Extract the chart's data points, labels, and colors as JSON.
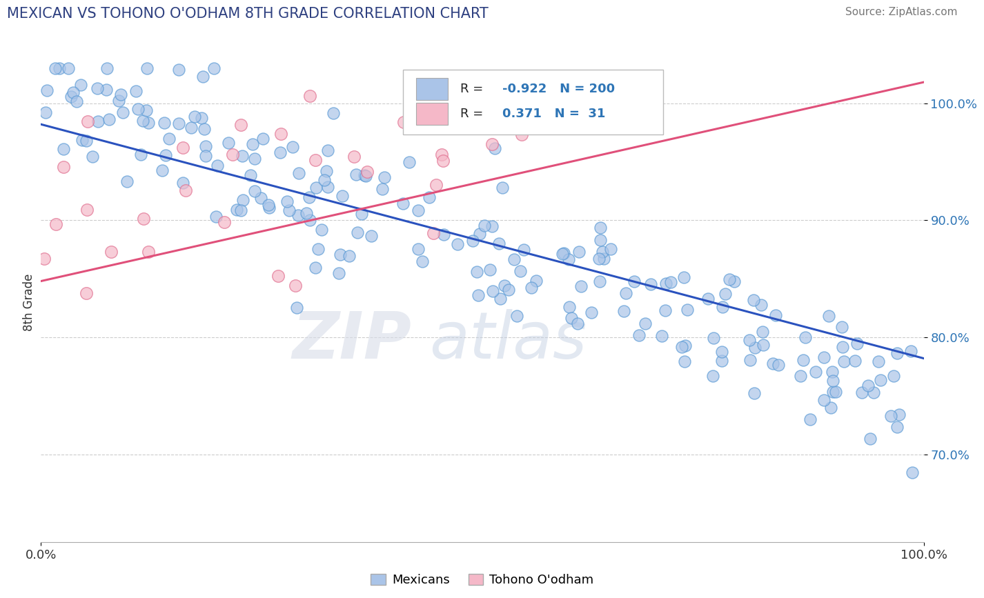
{
  "title": "MEXICAN VS TOHONO O'ODHAM 8TH GRADE CORRELATION CHART",
  "source_text": "Source: ZipAtlas.com",
  "ylabel": "8th Grade",
  "x_min": 0.0,
  "x_max": 1.0,
  "y_min": 0.625,
  "y_max": 1.035,
  "y_ticks": [
    0.7,
    0.8,
    0.9,
    1.0
  ],
  "y_tick_labels": [
    "70.0%",
    "80.0%",
    "90.0%",
    "100.0%"
  ],
  "x_ticks": [
    0.0,
    1.0
  ],
  "x_tick_labels": [
    "0.0%",
    "100.0%"
  ],
  "blue_R": -0.922,
  "blue_N": 200,
  "pink_R": 0.371,
  "pink_N": 31,
  "blue_fill_color": "#aac4e8",
  "blue_edge_color": "#5a9ad5",
  "pink_fill_color": "#f5b8c8",
  "pink_edge_color": "#e07090",
  "blue_line_color": "#2a52be",
  "pink_line_color": "#e0507a",
  "legend_label_blue": "Mexicans",
  "legend_label_pink": "Tohono O'odham",
  "watermark_zip": "ZIP",
  "watermark_atlas": "atlas",
  "title_color": "#2e4080",
  "source_color": "#777777",
  "background_color": "#ffffff",
  "grid_color": "#cccccc",
  "blue_trend_x0": 0.0,
  "blue_trend_x1": 1.0,
  "blue_trend_y0": 0.982,
  "blue_trend_y1": 0.782,
  "pink_trend_x0": 0.0,
  "pink_trend_x1": 1.0,
  "pink_trend_y0": 0.848,
  "pink_trend_y1": 1.018,
  "blue_leg_patch_color": "#aac4e8",
  "pink_leg_patch_color": "#f5b8c8",
  "legend_R_N_color": "#2e75b6",
  "legend_text_color": "#222222"
}
